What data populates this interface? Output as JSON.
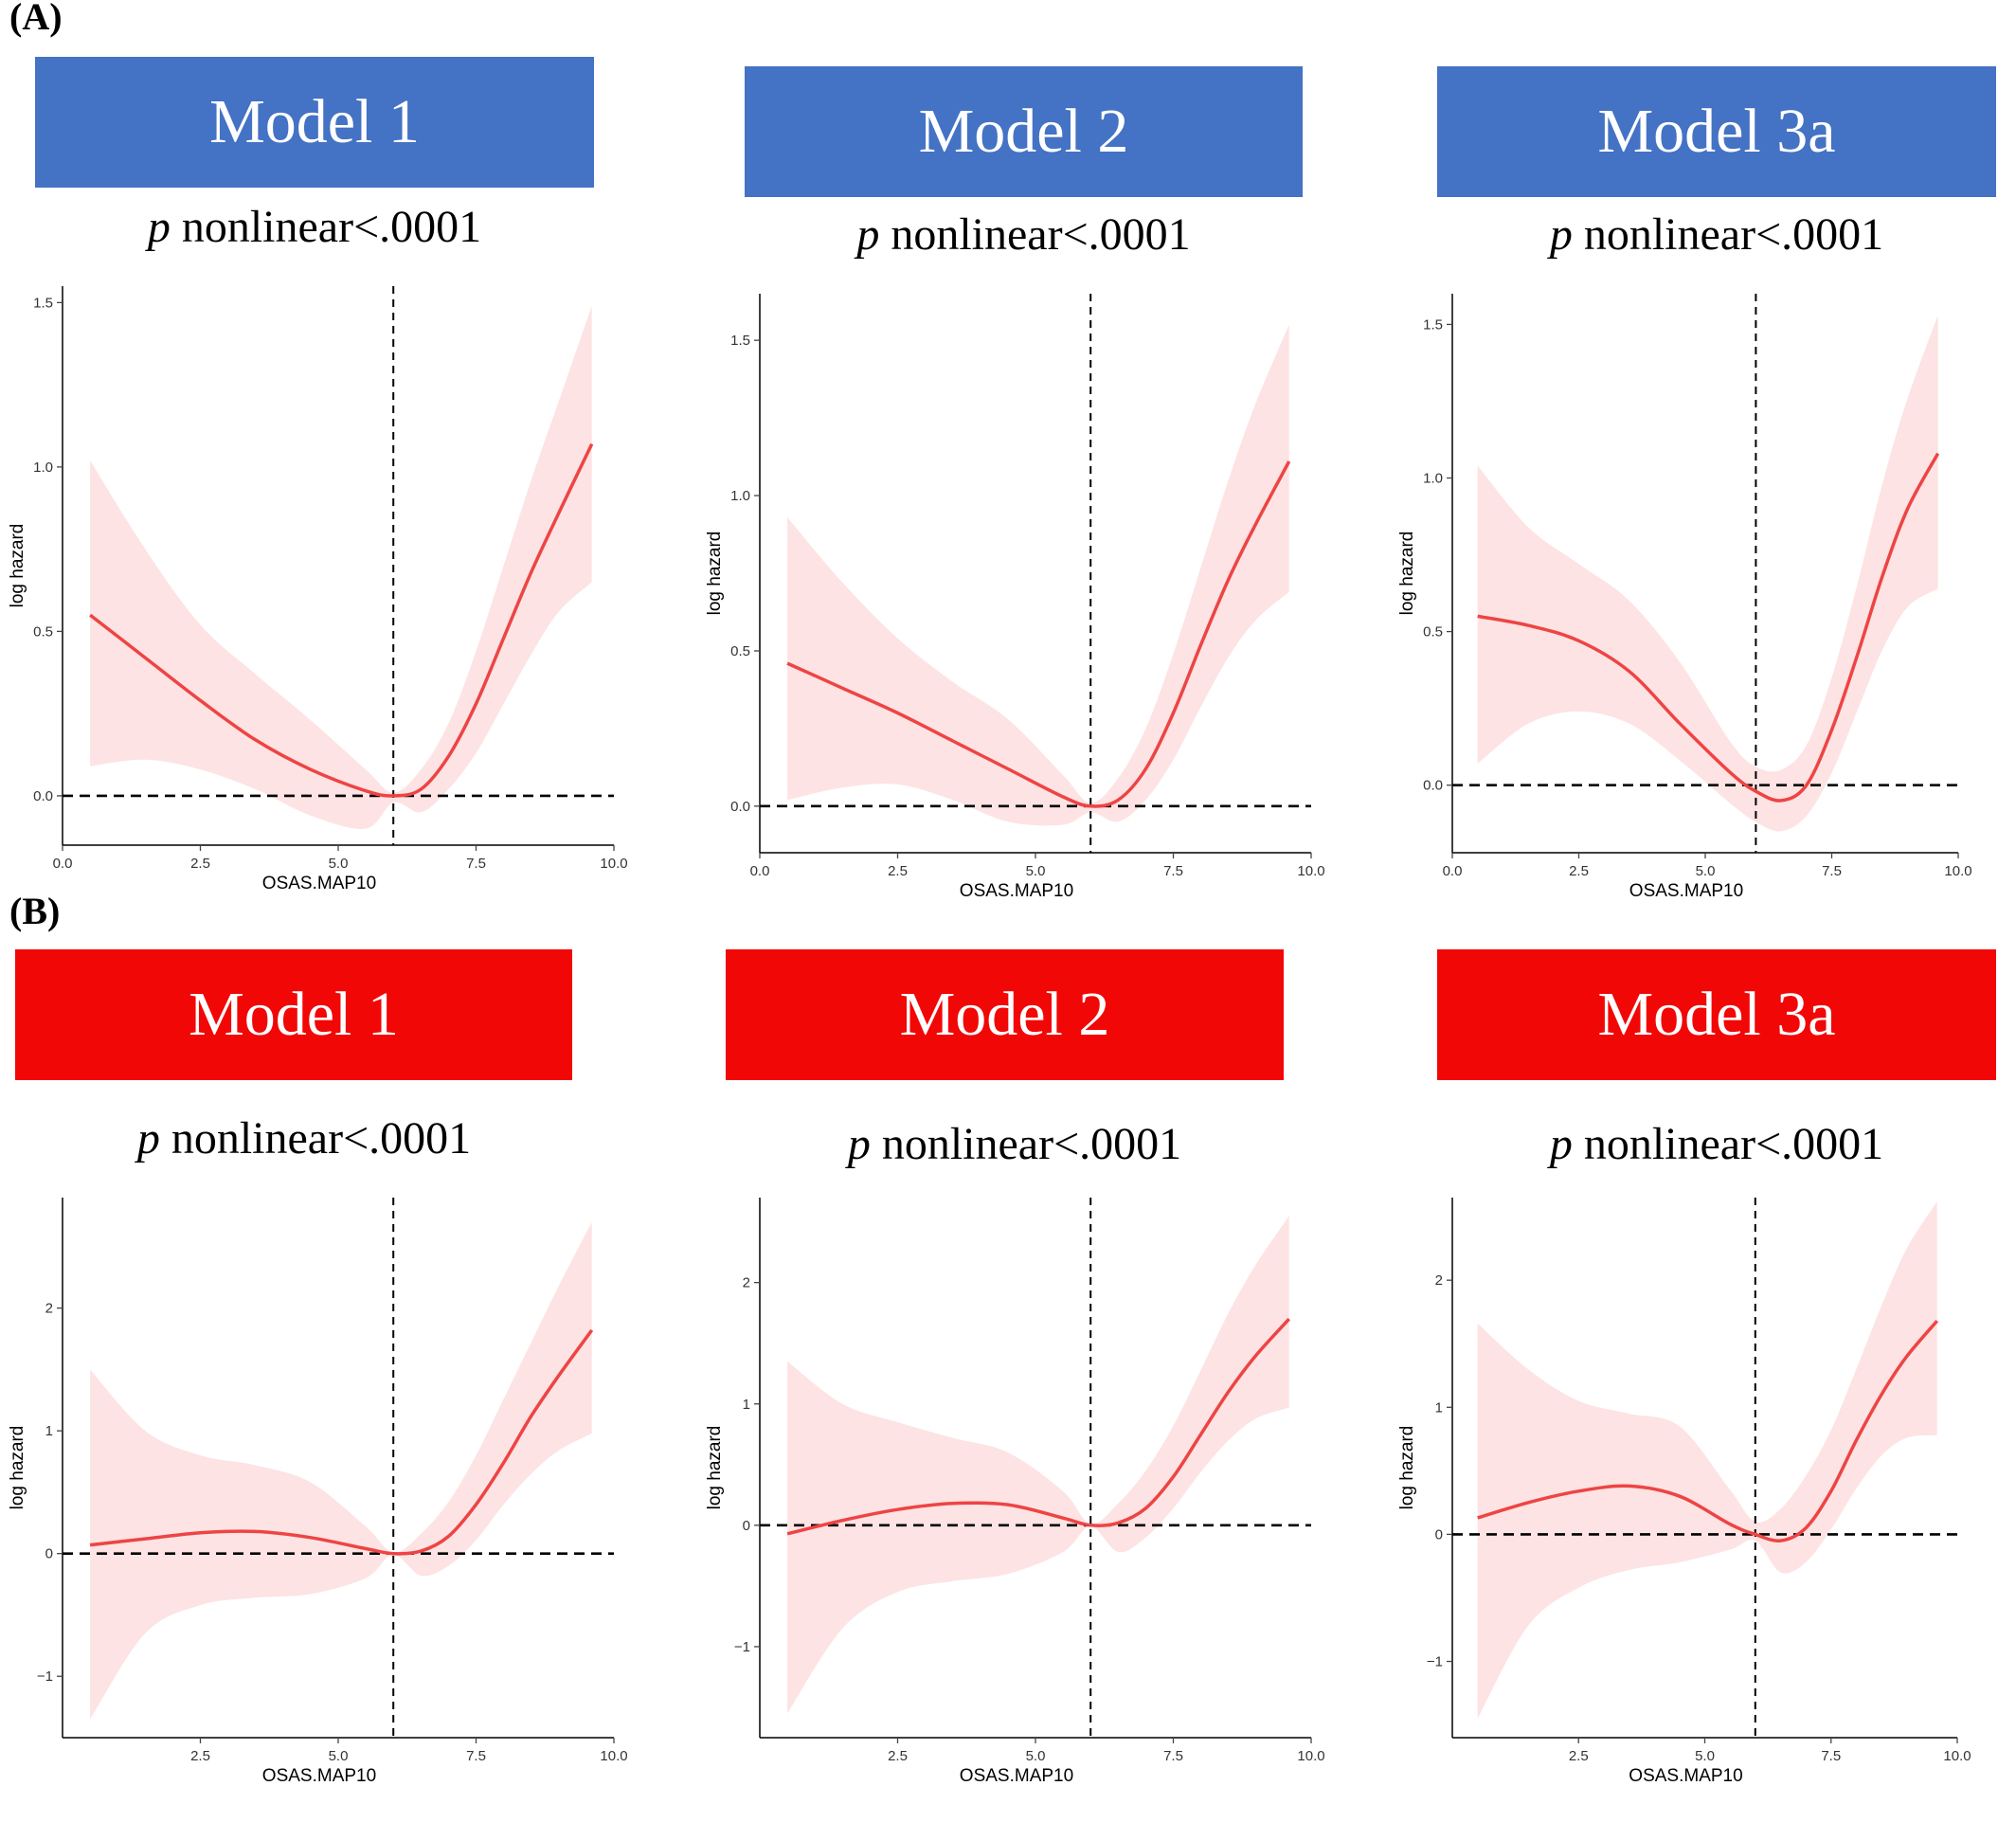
{
  "sections": [
    {
      "label": "(A)",
      "banner_color": "#4472C4",
      "panels": [
        {
          "model": "Model 1",
          "p_italic": "p",
          "p_text": " nonlinear<.0001"
        },
        {
          "model": "Model 2",
          "p_italic": "p",
          "p_text": " nonlinear<.0001"
        },
        {
          "model": "Model 3a",
          "p_italic": "p",
          "p_text": " nonlinear<.0001"
        }
      ]
    },
    {
      "label": "(B)",
      "banner_color": "#F20707",
      "panels": [
        {
          "model": "Model 1",
          "p_italic": "p",
          "p_text": " nonlinear<.0001"
        },
        {
          "model": "Model 2",
          "p_italic": "p",
          "p_text": " nonlinear<.0001"
        },
        {
          "model": "Model 3a",
          "p_italic": "p",
          "p_text": " nonlinear<.0001"
        }
      ]
    }
  ],
  "colors": {
    "line": "#EE4444",
    "band": "#FDE3E3",
    "reference": "#000000"
  },
  "chart_data": [
    {
      "type": "line",
      "section": "A",
      "model": "Model 1",
      "xlabel": "OSAS.MAP10",
      "ylabel": "log hazard",
      "xlim": [
        0,
        10
      ],
      "ylim": [
        -0.15,
        1.55
      ],
      "xticks": [
        0.0,
        2.5,
        5.0,
        7.5,
        10.0
      ],
      "xtick_labels": [
        "0.0",
        "2.5",
        "5.0",
        "7.5",
        "10.0"
      ],
      "yticks": [
        0.0,
        0.5,
        1.0,
        1.5
      ],
      "ytick_labels": [
        "0.0",
        "0.5",
        "1.0",
        "1.5"
      ],
      "reference_x": 6.0,
      "reference_y": 0,
      "series": [
        {
          "x": [
            0.5,
            1.5,
            2.5,
            3.5,
            4.5,
            5.5,
            6.0,
            6.5,
            7.0,
            7.5,
            8.0,
            8.5,
            9.0,
            9.6
          ],
          "y": [
            0.55,
            0.42,
            0.29,
            0.17,
            0.08,
            0.015,
            0.0,
            0.02,
            0.12,
            0.28,
            0.48,
            0.68,
            0.86,
            1.07
          ],
          "lower": [
            0.09,
            0.11,
            0.08,
            0.02,
            -0.06,
            -0.1,
            -0.02,
            -0.05,
            0.02,
            0.13,
            0.28,
            0.43,
            0.56,
            0.65
          ],
          "upper": [
            1.02,
            0.75,
            0.52,
            0.37,
            0.23,
            0.08,
            0.01,
            0.08,
            0.22,
            0.44,
            0.7,
            0.96,
            1.2,
            1.49
          ]
        }
      ]
    },
    {
      "type": "line",
      "section": "A",
      "model": "Model 2",
      "xlabel": "OSAS.MAP10",
      "ylabel": "log hazard",
      "xlim": [
        0,
        10
      ],
      "ylim": [
        -0.15,
        1.65
      ],
      "xticks": [
        0.0,
        2.5,
        5.0,
        7.5,
        10.0
      ],
      "xtick_labels": [
        "0.0",
        "2.5",
        "5.0",
        "7.5",
        "10.0"
      ],
      "yticks": [
        0.0,
        0.5,
        1.0,
        1.5
      ],
      "ytick_labels": [
        "0.0",
        "0.5",
        "1.0",
        "1.5"
      ],
      "reference_x": 6.0,
      "reference_y": 0,
      "series": [
        {
          "x": [
            0.5,
            1.5,
            2.5,
            3.5,
            4.5,
            5.5,
            6.0,
            6.5,
            7.0,
            7.5,
            8.0,
            8.5,
            9.0,
            9.6
          ],
          "y": [
            0.46,
            0.38,
            0.3,
            0.21,
            0.12,
            0.03,
            0.0,
            0.02,
            0.12,
            0.3,
            0.52,
            0.73,
            0.91,
            1.11
          ],
          "lower": [
            0.02,
            0.06,
            0.07,
            0.02,
            -0.05,
            -0.06,
            -0.02,
            -0.05,
            0.02,
            0.15,
            0.32,
            0.48,
            0.6,
            0.69
          ],
          "upper": [
            0.93,
            0.72,
            0.54,
            0.4,
            0.28,
            0.1,
            0.01,
            0.09,
            0.25,
            0.49,
            0.77,
            1.05,
            1.3,
            1.55
          ]
        }
      ]
    },
    {
      "type": "line",
      "section": "A",
      "model": "Model 3a",
      "xlabel": "OSAS.MAP10",
      "ylabel": "log hazard",
      "xlim": [
        0,
        10
      ],
      "ylim": [
        -0.22,
        1.6
      ],
      "xticks": [
        0.0,
        2.5,
        5.0,
        7.5,
        10.0
      ],
      "xtick_labels": [
        "0.0",
        "2.5",
        "5.0",
        "7.5",
        "10.0"
      ],
      "yticks": [
        0.0,
        0.5,
        1.0,
        1.5
      ],
      "ytick_labels": [
        "0.0",
        "0.5",
        "1.0",
        "1.5"
      ],
      "reference_x": 6.0,
      "reference_y": 0,
      "series": [
        {
          "x": [
            0.5,
            1.5,
            2.5,
            3.5,
            4.5,
            5.5,
            6.0,
            6.5,
            7.0,
            7.5,
            8.0,
            8.5,
            9.0,
            9.6
          ],
          "y": [
            0.55,
            0.52,
            0.47,
            0.37,
            0.2,
            0.04,
            -0.02,
            -0.05,
            0.0,
            0.18,
            0.42,
            0.68,
            0.9,
            1.08
          ],
          "lower": [
            0.07,
            0.2,
            0.24,
            0.2,
            0.08,
            -0.06,
            -0.12,
            -0.15,
            -0.1,
            0.04,
            0.24,
            0.44,
            0.58,
            0.64
          ],
          "upper": [
            1.04,
            0.84,
            0.72,
            0.6,
            0.4,
            0.14,
            0.06,
            0.05,
            0.13,
            0.35,
            0.65,
            0.98,
            1.26,
            1.53
          ]
        }
      ]
    },
    {
      "type": "line",
      "section": "B",
      "model": "Model 1",
      "xlabel": "OSAS.MAP10",
      "ylabel": "log hazard",
      "xlim": [
        0,
        10
      ],
      "ylim": [
        -1.5,
        2.9
      ],
      "xticks": [
        2.5,
        5.0,
        7.5,
        10.0
      ],
      "xtick_labels": [
        "2.5",
        "5.0",
        "7.5",
        "10.0"
      ],
      "yticks": [
        -1,
        0,
        1,
        2
      ],
      "ytick_labels": [
        "−1",
        "0",
        "1",
        "2"
      ],
      "reference_x": 6.0,
      "reference_y": 0,
      "series": [
        {
          "x": [
            0.5,
            1.5,
            2.5,
            3.5,
            4.5,
            5.5,
            6.0,
            6.5,
            7.0,
            7.5,
            8.0,
            8.5,
            9.0,
            9.6
          ],
          "y": [
            0.07,
            0.12,
            0.17,
            0.18,
            0.13,
            0.04,
            0.0,
            0.02,
            0.14,
            0.4,
            0.74,
            1.12,
            1.45,
            1.82
          ],
          "lower": [
            -1.35,
            -0.65,
            -0.42,
            -0.36,
            -0.33,
            -0.2,
            -0.01,
            -0.18,
            -0.1,
            0.11,
            0.4,
            0.65,
            0.84,
            0.98
          ],
          "upper": [
            1.5,
            1.0,
            0.8,
            0.72,
            0.58,
            0.22,
            0.01,
            0.16,
            0.42,
            0.8,
            1.26,
            1.72,
            2.18,
            2.7
          ]
        }
      ]
    },
    {
      "type": "line",
      "section": "B",
      "model": "Model 2",
      "xlabel": "OSAS.MAP10",
      "ylabel": "log hazard",
      "xlim": [
        0,
        10
      ],
      "ylim": [
        -1.75,
        2.7
      ],
      "xticks": [
        2.5,
        5.0,
        7.5,
        10.0
      ],
      "xtick_labels": [
        "2.5",
        "5.0",
        "7.5",
        "10.0"
      ],
      "yticks": [
        -1,
        0,
        1,
        2
      ],
      "ytick_labels": [
        "−1",
        "0",
        "1",
        "2"
      ],
      "reference_x": 6.0,
      "reference_y": 0,
      "series": [
        {
          "x": [
            0.5,
            1.5,
            2.5,
            3.5,
            4.5,
            5.5,
            6.0,
            6.5,
            7.0,
            7.5,
            8.0,
            8.5,
            9.0,
            9.6
          ],
          "y": [
            -0.07,
            0.04,
            0.13,
            0.18,
            0.17,
            0.06,
            0.0,
            0.02,
            0.14,
            0.4,
            0.75,
            1.1,
            1.4,
            1.7
          ],
          "lower": [
            -1.55,
            -0.85,
            -0.55,
            -0.46,
            -0.4,
            -0.22,
            -0.01,
            -0.22,
            -0.1,
            0.14,
            0.44,
            0.7,
            0.88,
            0.97
          ],
          "upper": [
            1.35,
            1.0,
            0.85,
            0.72,
            0.6,
            0.28,
            0.01,
            0.18,
            0.45,
            0.82,
            1.28,
            1.75,
            2.15,
            2.55
          ]
        }
      ]
    },
    {
      "type": "line",
      "section": "B",
      "model": "Model 3a",
      "xlabel": "OSAS.MAP10",
      "ylabel": "log hazard",
      "xlim": [
        0,
        10
      ],
      "ylim": [
        -1.6,
        2.65
      ],
      "xticks": [
        2.5,
        5.0,
        7.5,
        10.0
      ],
      "xtick_labels": [
        "2.5",
        "5.0",
        "7.5",
        "10.0"
      ],
      "yticks": [
        -1,
        0,
        1,
        2
      ],
      "ytick_labels": [
        "−1",
        "0",
        "1",
        "2"
      ],
      "reference_x": 6.0,
      "reference_y": 0,
      "series": [
        {
          "x": [
            0.5,
            1.5,
            2.5,
            3.5,
            4.5,
            5.5,
            6.0,
            6.5,
            7.0,
            7.5,
            8.0,
            8.5,
            9.0,
            9.6
          ],
          "y": [
            0.13,
            0.25,
            0.34,
            0.38,
            0.3,
            0.08,
            0.0,
            -0.05,
            0.05,
            0.34,
            0.74,
            1.1,
            1.4,
            1.68
          ],
          "lower": [
            -1.45,
            -0.72,
            -0.42,
            -0.28,
            -0.22,
            -0.12,
            -0.05,
            -0.3,
            -0.22,
            0.04,
            0.36,
            0.62,
            0.76,
            0.78
          ],
          "upper": [
            1.66,
            1.3,
            1.05,
            0.95,
            0.85,
            0.35,
            0.1,
            0.2,
            0.46,
            0.82,
            1.3,
            1.8,
            2.25,
            2.62
          ]
        }
      ]
    }
  ]
}
